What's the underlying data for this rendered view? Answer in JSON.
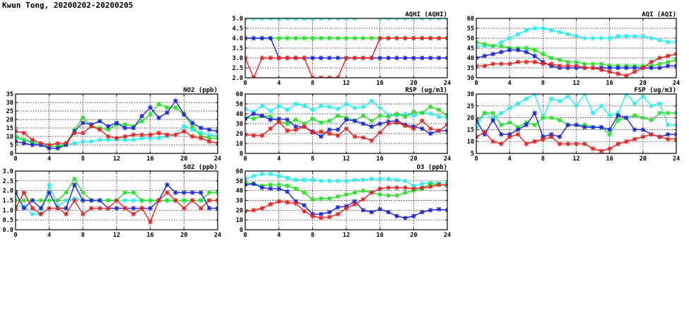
{
  "page": {
    "title": "Kwun Tong, 20200202-20200205"
  },
  "colors": {
    "red": "#e8201c",
    "blue": "#1822e0",
    "green": "#22e022",
    "cyan": "#22f0f0"
  },
  "chart_data": [
    {
      "id": "aqhi",
      "type": "line",
      "title": "AQHI (AQHI)",
      "x": [
        0,
        1,
        2,
        3,
        4,
        5,
        6,
        7,
        8,
        9,
        10,
        11,
        12,
        13,
        14,
        15,
        16,
        17,
        18,
        19,
        20,
        21,
        22,
        23,
        24
      ],
      "xlim": [
        0,
        24
      ],
      "xticks": [
        "0",
        "4",
        "8",
        "12",
        "16",
        "20",
        "24"
      ],
      "ylim": [
        2.0,
        5.0
      ],
      "yticks": [
        "2.0",
        "2.5",
        "3.0",
        "3.5",
        "4.0",
        "4.5",
        "5.0"
      ],
      "grid": true,
      "series": [
        {
          "color": "cyan",
          "values": [
            5,
            5,
            5,
            5,
            5,
            5,
            5,
            5,
            5,
            5,
            5,
            5,
            5,
            5,
            5.2,
            5.2,
            5,
            5,
            5,
            5,
            5,
            5,
            5,
            5,
            5
          ]
        },
        {
          "color": "green",
          "values": [
            4,
            4,
            4,
            4,
            4,
            4,
            4,
            4,
            4,
            4,
            4,
            4,
            4,
            4,
            4,
            4,
            4,
            4,
            4,
            4,
            4,
            4,
            4,
            4,
            4
          ]
        },
        {
          "color": "blue",
          "values": [
            4,
            4,
            4,
            4,
            3,
            3,
            3,
            3,
            3,
            3,
            3,
            3,
            3,
            3,
            3,
            3,
            3,
            3,
            3,
            3,
            3,
            3,
            3,
            3,
            3
          ]
        },
        {
          "color": "red",
          "values": [
            3,
            2,
            3,
            3,
            3,
            3,
            3,
            3,
            2,
            2,
            2,
            2,
            3,
            3,
            3,
            3,
            4,
            4,
            4,
            4,
            4,
            4,
            4,
            4,
            4
          ]
        }
      ]
    },
    {
      "id": "aqi",
      "type": "line",
      "title": "AQI (AQI)",
      "x": [
        0,
        1,
        2,
        3,
        4,
        5,
        6,
        7,
        8,
        9,
        10,
        11,
        12,
        13,
        14,
        15,
        16,
        17,
        18,
        19,
        20,
        21,
        22,
        23,
        24
      ],
      "xlim": [
        0,
        24
      ],
      "xticks": [
        "0",
        "4",
        "8",
        "12",
        "16",
        "20",
        "24"
      ],
      "ylim": [
        30,
        60
      ],
      "yticks": [
        "30",
        "35",
        "40",
        "45",
        "50",
        "55",
        "60"
      ],
      "grid": true,
      "series": [
        {
          "color": "cyan",
          "values": [
            46,
            46,
            46,
            48,
            50,
            52,
            54,
            55,
            55,
            54,
            53,
            52,
            51,
            50,
            50,
            50,
            50,
            51,
            51,
            51,
            51,
            50,
            49,
            48,
            48
          ]
        },
        {
          "color": "green",
          "values": [
            48,
            47,
            46,
            46,
            45,
            45,
            45,
            44,
            42,
            40,
            39,
            38,
            38,
            37,
            37,
            37,
            36,
            36,
            36,
            36,
            36,
            36,
            37,
            38,
            39
          ]
        },
        {
          "color": "blue",
          "values": [
            40,
            41,
            42,
            43,
            44,
            44,
            43,
            41,
            38,
            36,
            35,
            35,
            35,
            35,
            35,
            35,
            35,
            35,
            35,
            35,
            35,
            35,
            35,
            36,
            36
          ]
        },
        {
          "color": "red",
          "values": [
            36,
            36,
            37,
            37,
            37,
            38,
            38,
            38,
            37,
            37,
            36,
            36,
            36,
            35,
            35,
            34,
            33,
            32,
            31,
            33,
            35,
            38,
            40,
            41,
            42
          ]
        }
      ]
    },
    {
      "id": "no2",
      "type": "line",
      "title": "NO2 (ppb)",
      "x": [
        0,
        1,
        2,
        3,
        4,
        5,
        6,
        7,
        8,
        9,
        10,
        11,
        12,
        13,
        14,
        15,
        16,
        17,
        18,
        19,
        20,
        21,
        22,
        23,
        24
      ],
      "xlim": [
        0,
        24
      ],
      "xticks": [
        "0",
        "4",
        "8",
        "12",
        "16",
        "20",
        "24"
      ],
      "ylim": [
        0,
        35
      ],
      "yticks": [
        "0",
        "5",
        "10",
        "15",
        "20",
        "25",
        "30",
        "35"
      ],
      "grid": true,
      "series": [
        {
          "color": "cyan",
          "values": [
            9,
            8,
            7,
            5,
            4,
            4,
            5,
            6,
            7,
            7,
            8,
            8,
            8,
            8,
            8,
            9,
            9,
            9,
            10,
            11,
            16,
            14,
            12,
            11,
            10
          ]
        },
        {
          "color": "green",
          "values": [
            10,
            8,
            6,
            5,
            4,
            4,
            6,
            14,
            21,
            16,
            15,
            14,
            17,
            17,
            16,
            19,
            23,
            29,
            27,
            27,
            23,
            16,
            10,
            9,
            9
          ]
        },
        {
          "color": "blue",
          "values": [
            7,
            6,
            5,
            5,
            3,
            3,
            5,
            13,
            18,
            17,
            19,
            16,
            18,
            15,
            15,
            22,
            27,
            21,
            24,
            31,
            23,
            18,
            15,
            14,
            13
          ]
        },
        {
          "color": "red",
          "values": [
            13,
            12,
            8,
            6,
            5,
            6,
            6,
            12,
            12,
            16,
            14,
            10,
            9,
            10,
            11,
            11,
            11,
            12,
            11,
            11,
            13,
            10,
            9,
            7,
            6
          ]
        }
      ]
    },
    {
      "id": "rsp",
      "type": "line",
      "title": "RSP (ug/m3)",
      "x": [
        0,
        1,
        2,
        3,
        4,
        5,
        6,
        7,
        8,
        9,
        10,
        11,
        12,
        13,
        14,
        15,
        16,
        17,
        18,
        19,
        20,
        21,
        22,
        23,
        24
      ],
      "xlim": [
        0,
        24
      ],
      "xticks": [
        "0",
        "4",
        "8",
        "12",
        "16",
        "20",
        "24"
      ],
      "ylim": [
        0,
        60
      ],
      "yticks": [
        "0",
        "10",
        "20",
        "30",
        "40",
        "50",
        "60"
      ],
      "grid": true,
      "series": [
        {
          "color": "cyan",
          "values": [
            45,
            42,
            48,
            43,
            48,
            44,
            50,
            48,
            44,
            48,
            47,
            45,
            50,
            46,
            47,
            53,
            46,
            39,
            38,
            40,
            38,
            41,
            40,
            37,
            36
          ]
        },
        {
          "color": "green",
          "values": [
            36,
            35,
            38,
            37,
            32,
            30,
            34,
            30,
            35,
            31,
            33,
            38,
            36,
            33,
            38,
            33,
            38,
            37,
            40,
            37,
            42,
            41,
            47,
            44,
            38
          ]
        },
        {
          "color": "blue",
          "values": [
            35,
            40,
            38,
            34,
            35,
            34,
            27,
            27,
            22,
            17,
            24,
            24,
            34,
            33,
            30,
            27,
            30,
            32,
            33,
            29,
            27,
            25,
            20,
            23,
            23
          ]
        },
        {
          "color": "red",
          "values": [
            19,
            18,
            18,
            25,
            32,
            23,
            24,
            27,
            21,
            22,
            20,
            18,
            25,
            17,
            16,
            13,
            21,
            30,
            31,
            28,
            25,
            33,
            25,
            23,
            29
          ]
        }
      ]
    },
    {
      "id": "fsp",
      "type": "line",
      "title": "FSP (ug/m3)",
      "x": [
        0,
        1,
        2,
        3,
        4,
        5,
        6,
        7,
        8,
        9,
        10,
        11,
        12,
        13,
        14,
        15,
        16,
        17,
        18,
        19,
        20,
        21,
        22,
        23,
        24
      ],
      "xlim": [
        0,
        24
      ],
      "xticks": [
        "0",
        "4",
        "8",
        "12",
        "16",
        "20",
        "24"
      ],
      "ylim": [
        5,
        30
      ],
      "yticks": [
        "5",
        "10",
        "15",
        "20",
        "25",
        "30"
      ],
      "grid": true,
      "series": [
        {
          "color": "cyan",
          "values": [
            16,
            22,
            20,
            22,
            24,
            26,
            28,
            30,
            20,
            28,
            27,
            29,
            25,
            30,
            22,
            25,
            21,
            22,
            30,
            26,
            29,
            25,
            26,
            17,
            17
          ]
        },
        {
          "color": "green",
          "values": [
            18,
            22,
            22,
            17,
            18,
            16,
            18,
            17,
            20,
            20,
            19,
            17,
            17,
            17,
            16,
            16,
            13,
            19,
            20,
            21,
            20,
            19,
            22,
            22,
            22
          ]
        },
        {
          "color": "blue",
          "values": [
            19,
            13,
            19,
            13,
            13,
            15,
            17,
            22,
            12,
            13,
            12,
            17,
            17,
            16,
            16,
            16,
            15,
            21,
            20,
            15,
            15,
            13,
            12,
            13,
            13
          ]
        },
        {
          "color": "red",
          "values": [
            12,
            14,
            10,
            9,
            12,
            13,
            9,
            10,
            11,
            12,
            9,
            9,
            9,
            9,
            7,
            6,
            7,
            9,
            10,
            11,
            12,
            13,
            12,
            11,
            11
          ]
        }
      ]
    },
    {
      "id": "so2",
      "type": "line",
      "title": "SO2 (ppb)",
      "x": [
        0,
        1,
        2,
        3,
        4,
        5,
        6,
        7,
        8,
        9,
        10,
        11,
        12,
        13,
        14,
        15,
        16,
        17,
        18,
        19,
        20,
        21,
        22,
        23,
        24
      ],
      "xlim": [
        0,
        24
      ],
      "xticks": [
        "0",
        "4",
        "8",
        "12",
        "16",
        "20",
        "24"
      ],
      "ylim": [
        0.0,
        3.0
      ],
      "yticks": [
        "0.0",
        "0.5",
        "1.0",
        "1.5",
        "2.0",
        "2.5",
        "3.0"
      ],
      "grid": true,
      "series": [
        {
          "color": "cyan",
          "values": [
            1.2,
            1.2,
            0.8,
            0.8,
            2.3,
            1.2,
            1.5,
            1.6,
            1.5,
            1.5,
            1.5,
            1.5,
            1.5,
            1.5,
            1.5,
            1.5,
            1.5,
            1.5,
            1.5,
            1.5,
            1.5,
            1.5,
            1.5,
            1.5,
            1.5
          ]
        },
        {
          "color": "green",
          "values": [
            1.5,
            1.5,
            1.5,
            1.5,
            1.5,
            1.5,
            1.9,
            2.6,
            1.9,
            1.5,
            1.5,
            1.5,
            1.5,
            1.9,
            1.9,
            1.5,
            1.5,
            1.5,
            1.5,
            1.5,
            1.5,
            1.5,
            1.5,
            1.9,
            1.9
          ]
        },
        {
          "color": "blue",
          "values": [
            1.9,
            1.1,
            1.5,
            1.1,
            1.9,
            1.1,
            1.1,
            2.3,
            1.5,
            1.5,
            1.5,
            1.1,
            1.1,
            1.1,
            1.1,
            1.1,
            1.1,
            1.5,
            2.3,
            1.9,
            1.9,
            1.9,
            1.9,
            1.1,
            1.1
          ]
        },
        {
          "color": "red",
          "values": [
            1.1,
            1.9,
            1.1,
            0.8,
            1.1,
            1.1,
            0.8,
            1.5,
            0.8,
            1.1,
            1.1,
            1.1,
            1.5,
            1.1,
            0.8,
            1.1,
            0.4,
            1.5,
            1.9,
            1.5,
            1.1,
            1.5,
            1.1,
            1.5,
            1.5
          ]
        }
      ]
    },
    {
      "id": "o3",
      "type": "line",
      "title": "O3 (ppb)",
      "x": [
        0,
        1,
        2,
        3,
        4,
        5,
        6,
        7,
        8,
        9,
        10,
        11,
        12,
        13,
        14,
        15,
        16,
        17,
        18,
        19,
        20,
        21,
        22,
        23,
        24
      ],
      "xlim": [
        0,
        24
      ],
      "xticks": [
        "0",
        "4",
        "8",
        "12",
        "16",
        "20",
        "24"
      ],
      "ylim": [
        0,
        60
      ],
      "yticks": [
        "0",
        "10",
        "20",
        "30",
        "40",
        "50",
        "60"
      ],
      "grid": true,
      "series": [
        {
          "color": "cyan",
          "values": [
            52,
            55,
            57,
            57,
            55,
            53,
            51,
            51,
            51,
            50,
            50,
            50,
            50,
            51,
            51,
            52,
            52,
            52,
            51,
            50,
            45,
            47,
            48,
            48,
            48
          ]
        },
        {
          "color": "green",
          "values": [
            48,
            47,
            45,
            46,
            46,
            45,
            42,
            38,
            31,
            32,
            32,
            34,
            36,
            38,
            40,
            38,
            36,
            35,
            35,
            38,
            40,
            42,
            47,
            46,
            45
          ]
        },
        {
          "color": "blue",
          "values": [
            46,
            47,
            43,
            42,
            42,
            39,
            29,
            25,
            16,
            16,
            18,
            23,
            24,
            29,
            20,
            18,
            21,
            18,
            14,
            12,
            14,
            18,
            20,
            21,
            20
          ]
        },
        {
          "color": "red",
          "values": [
            19,
            20,
            22,
            26,
            29,
            28,
            27,
            19,
            14,
            12,
            13,
            16,
            22,
            26,
            31,
            38,
            42,
            43,
            43,
            43,
            42,
            43,
            44,
            46,
            46
          ]
        }
      ]
    }
  ]
}
